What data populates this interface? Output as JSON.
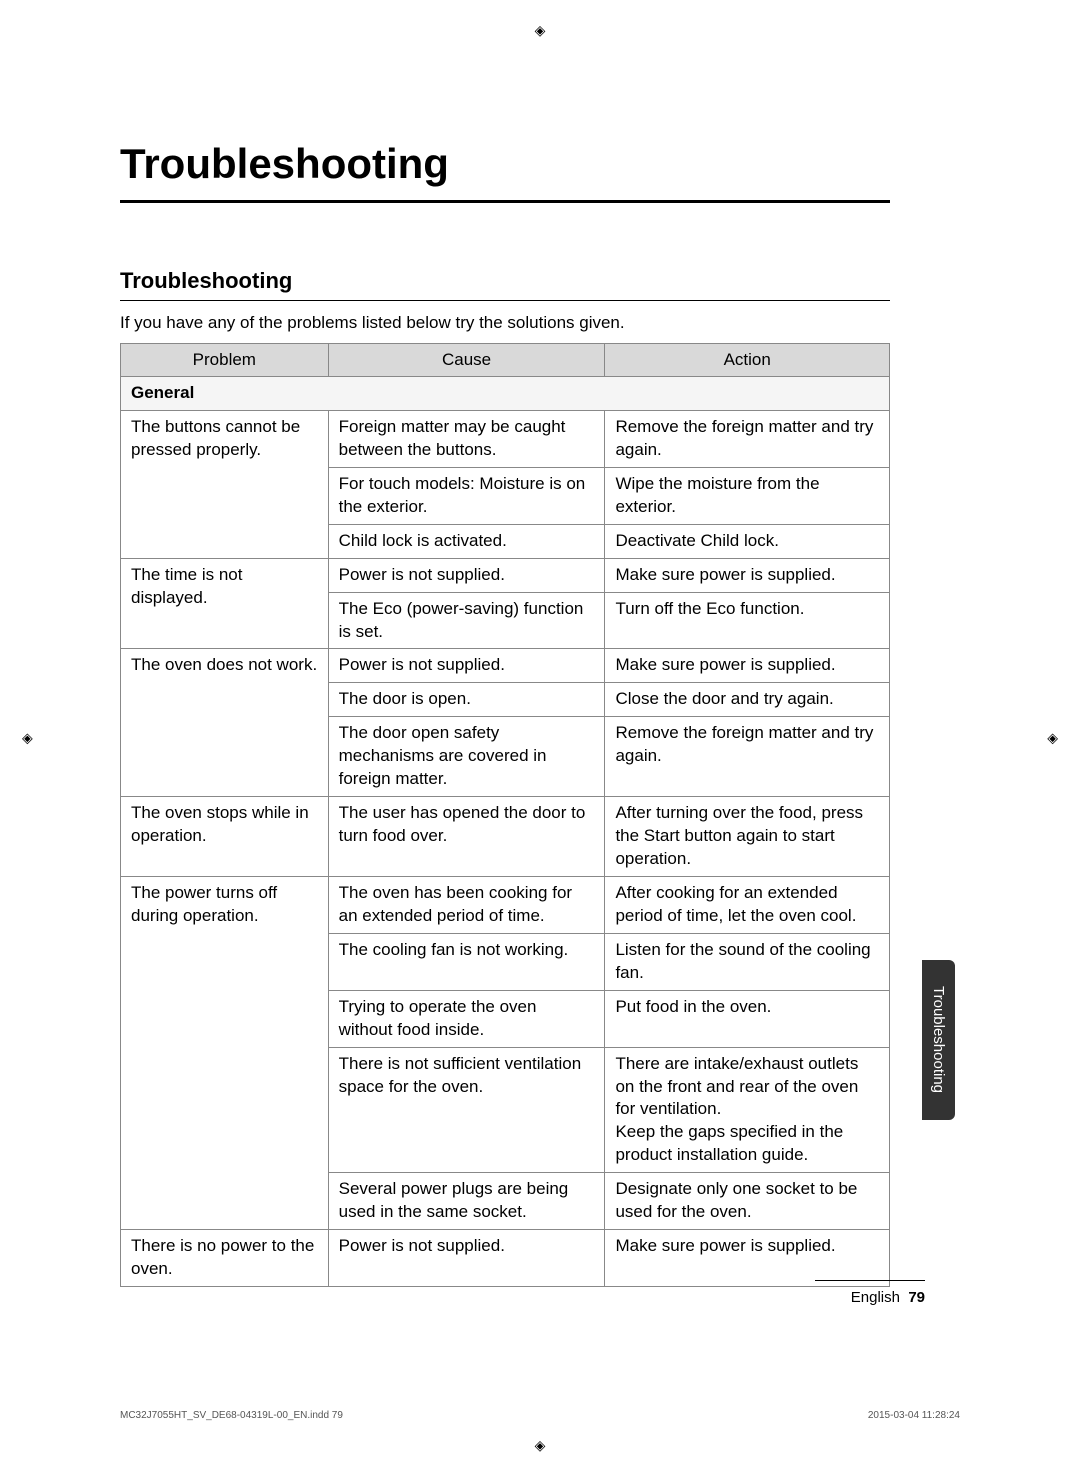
{
  "page": {
    "title": "Troubleshooting",
    "sectionTitle": "Troubleshooting",
    "intro": "If you have any of the problems listed below try the solutions given.",
    "sideTab": "Troubleshooting",
    "footerLang": "English",
    "footerPage": "79"
  },
  "table": {
    "headers": {
      "problem": "Problem",
      "cause": "Cause",
      "action": "Action"
    },
    "category": "General",
    "rows": [
      {
        "problem": "The buttons cannot be pressed properly.",
        "items": [
          {
            "cause": "Foreign matter may be caught between the buttons.",
            "action": "Remove the foreign matter and try again."
          },
          {
            "cause": "For touch models: Moisture is on the exterior.",
            "action": "Wipe the moisture from the exterior."
          },
          {
            "cause": "Child lock is activated.",
            "action": "Deactivate Child lock."
          }
        ]
      },
      {
        "problem": "The time is not displayed.",
        "items": [
          {
            "cause": "Power is not supplied.",
            "action": "Make sure power is supplied."
          },
          {
            "cause": "The Eco (power-saving) function is set.",
            "action": "Turn off the Eco function."
          }
        ]
      },
      {
        "problem": "The oven does not work.",
        "items": [
          {
            "cause": "Power is not supplied.",
            "action": "Make sure power is supplied."
          },
          {
            "cause": "The door is open.",
            "action": "Close the door and try again."
          },
          {
            "cause": "The door open safety mechanisms are covered in foreign matter.",
            "action": "Remove the foreign matter and try again."
          }
        ]
      },
      {
        "problem": "The oven stops while in operation.",
        "items": [
          {
            "cause": "The user has opened the door to turn food over.",
            "action": "After turning over the food, press the Start button again to start operation."
          }
        ]
      },
      {
        "problem": "The power turns off during operation.",
        "items": [
          {
            "cause": "The oven has been cooking for an extended period of time.",
            "action": "After cooking for an extended period of time, let the oven cool."
          },
          {
            "cause": "The cooling fan is not working.",
            "action": "Listen for the sound of the cooling fan."
          },
          {
            "cause": "Trying to operate the oven without food inside.",
            "action": "Put food in the oven."
          },
          {
            "cause": "There is not sufficient ventilation space for the oven.",
            "action": "There are intake/exhaust outlets on the front and rear of the oven for ventilation.\nKeep the gaps specified in the product installation guide."
          },
          {
            "cause": "Several power plugs are being used in the same socket.",
            "action": "Designate only one socket to be used for the oven."
          }
        ]
      },
      {
        "problem": "There is no power to the oven.",
        "items": [
          {
            "cause": "Power is not supplied.",
            "action": "Make sure power is supplied."
          }
        ]
      }
    ]
  },
  "printInfo": {
    "file": "MC32J7055HT_SV_DE68-04319L-00_EN.indd   79",
    "date": "2015-03-04   11:28:24"
  }
}
